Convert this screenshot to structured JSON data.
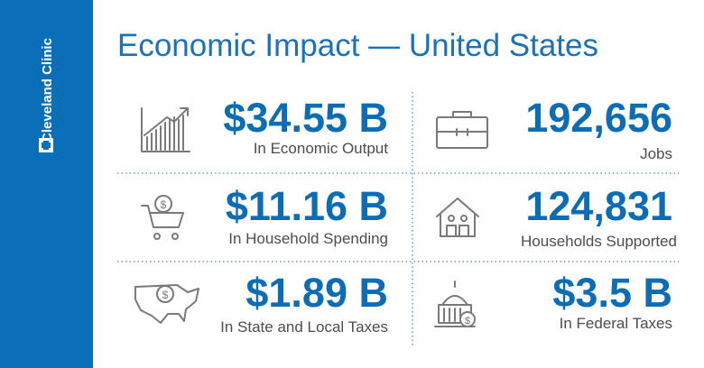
{
  "sidebar": {
    "brand": "Cleveland Clinic"
  },
  "header": {
    "title": "Economic Impact — United States"
  },
  "stats": [
    {
      "value": "$34.55 B",
      "label": "In Economic Output"
    },
    {
      "value": "192,656",
      "label": "Jobs"
    },
    {
      "value": "$11.16 B",
      "label": "In Household Spending"
    },
    {
      "value": "124,831",
      "label": "Households Supported"
    },
    {
      "value": "$1.89 B",
      "label": "In State and Local Taxes"
    },
    {
      "value": "$3.5 B",
      "label": "In Federal Taxes"
    }
  ]
}
